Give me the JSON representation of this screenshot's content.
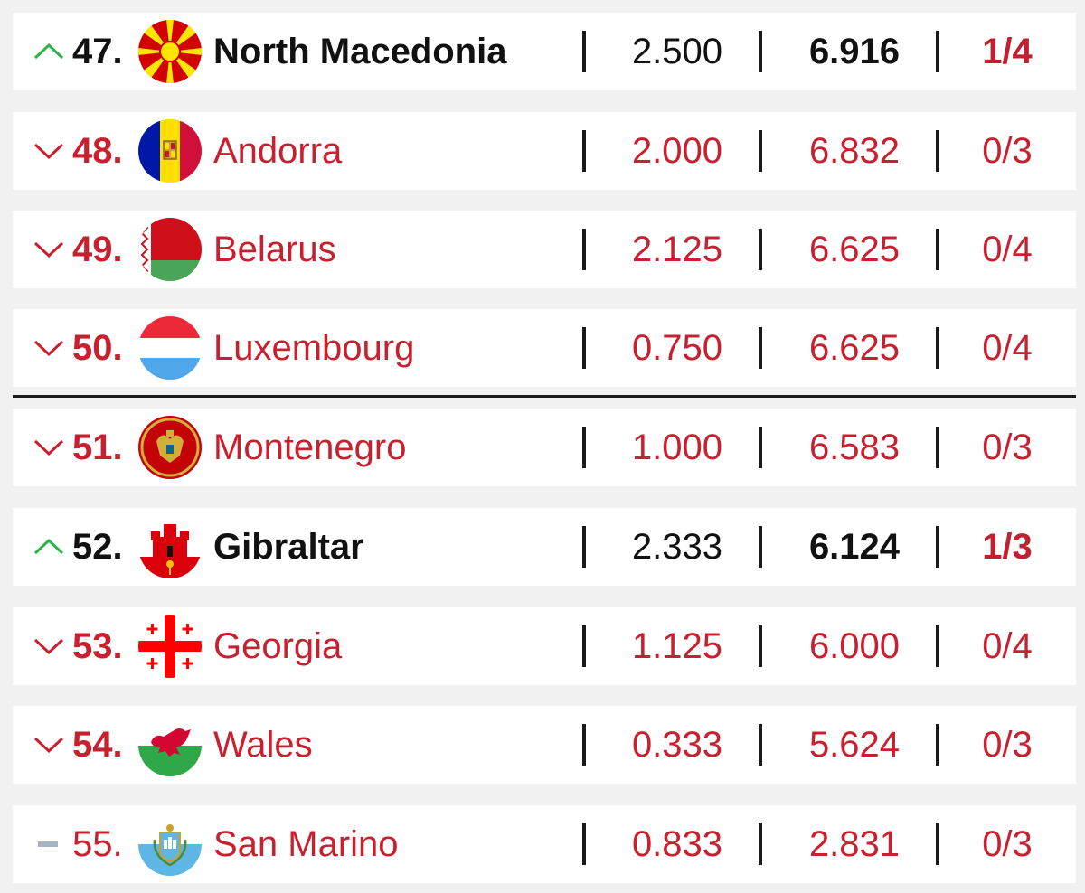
{
  "colors": {
    "up": "#2db34a",
    "down": "#c8202f",
    "same": "#a9b4c2",
    "text": "#111111"
  },
  "rows": [
    {
      "trend": "up",
      "rank": "47.",
      "flag": "north-macedonia-flag-icon",
      "name": "North Macedonia",
      "points": "2.500",
      "average": "6.916",
      "wins": "1/4"
    },
    {
      "trend": "down",
      "rank": "48.",
      "flag": "andorra-flag-icon",
      "name": "Andorra",
      "points": "2.000",
      "average": "6.832",
      "wins": "0/3"
    },
    {
      "trend": "down",
      "rank": "49.",
      "flag": "belarus-flag-icon",
      "name": "Belarus",
      "points": "2.125",
      "average": "6.625",
      "wins": "0/4"
    },
    {
      "trend": "down",
      "rank": "50.",
      "flag": "luxembourg-flag-icon",
      "name": "Luxembourg",
      "points": "0.750",
      "average": "6.625",
      "wins": "0/4"
    },
    {
      "trend": "down",
      "rank": "51.",
      "flag": "montenegro-flag-icon",
      "name": "Montenegro",
      "points": "1.000",
      "average": "6.583",
      "wins": "0/3"
    },
    {
      "trend": "up",
      "rank": "52.",
      "flag": "gibraltar-flag-icon",
      "name": "Gibraltar",
      "points": "2.333",
      "average": "6.124",
      "wins": "1/3"
    },
    {
      "trend": "down",
      "rank": "53.",
      "flag": "georgia-flag-icon",
      "name": "Georgia",
      "points": "1.125",
      "average": "6.000",
      "wins": "0/4"
    },
    {
      "trend": "down",
      "rank": "54.",
      "flag": "wales-flag-icon",
      "name": "Wales",
      "points": "0.333",
      "average": "5.624",
      "wins": "0/3"
    },
    {
      "trend": "same",
      "rank": "55.",
      "flag": "san-marino-flag-icon",
      "name": "San Marino",
      "points": "0.833",
      "average": "2.831",
      "wins": "0/3"
    }
  ]
}
